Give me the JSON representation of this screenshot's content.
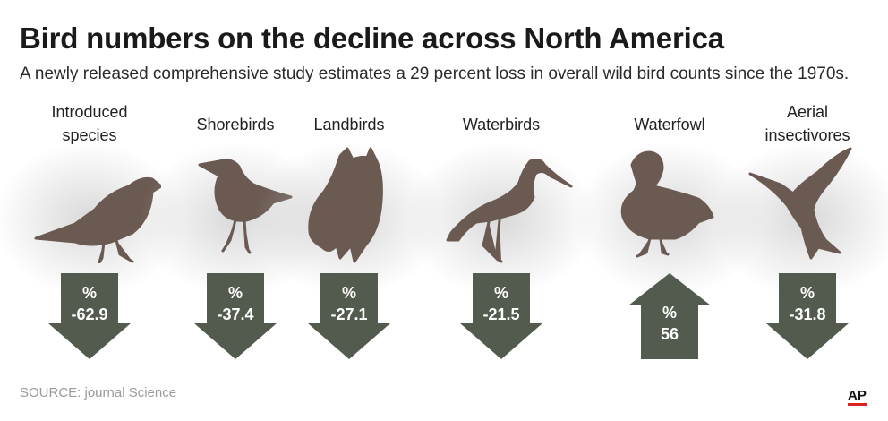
{
  "title": "Bird numbers on the decline across North America",
  "subtitle": "A newly released comprehensive study estimates a 29 percent loss in overall wild bird counts since the 1970s.",
  "source": "SOURCE: journal Science",
  "credit": "AP",
  "colors": {
    "bird": "#6b5a52",
    "arrow": "#525b4d",
    "glow": "#a0a0a0",
    "ap_underline": "#dd2222"
  },
  "chart_data": {
    "type": "bar",
    "title": "Bird numbers on the decline across North America",
    "categories": [
      "Introduced species",
      "Shorebirds",
      "Landbirds",
      "Waterbirds",
      "Waterfowl",
      "Aerial insectivores"
    ],
    "values": [
      -62.9,
      -37.4,
      -27.1,
      -21.5,
      56,
      -31.8
    ],
    "unit": "%",
    "items": [
      {
        "label_lines": [
          "Introduced",
          "species"
        ],
        "value": -62.9,
        "value_text": "-62.9",
        "unit": "%",
        "direction": "down",
        "icon": "sparrow-icon"
      },
      {
        "label_lines": [
          "Shorebirds"
        ],
        "value": -37.4,
        "value_text": "-37.4",
        "unit": "%",
        "direction": "down",
        "icon": "sandpiper-icon"
      },
      {
        "label_lines": [
          "Landbirds"
        ],
        "value": -27.1,
        "value_text": "-27.1",
        "unit": "%",
        "direction": "down",
        "icon": "owl-icon"
      },
      {
        "label_lines": [
          "Waterbirds"
        ],
        "value": -21.5,
        "value_text": "-21.5",
        "unit": "%",
        "direction": "down",
        "icon": "heron-icon"
      },
      {
        "label_lines": [
          "Waterfowl"
        ],
        "value": 56,
        "value_text": "56",
        "unit": "%",
        "direction": "up",
        "icon": "duck-icon"
      },
      {
        "label_lines": [
          "Aerial",
          "insectivores"
        ],
        "value": -31.8,
        "value_text": "-31.8",
        "unit": "%",
        "direction": "down",
        "icon": "swallow-icon"
      }
    ]
  }
}
